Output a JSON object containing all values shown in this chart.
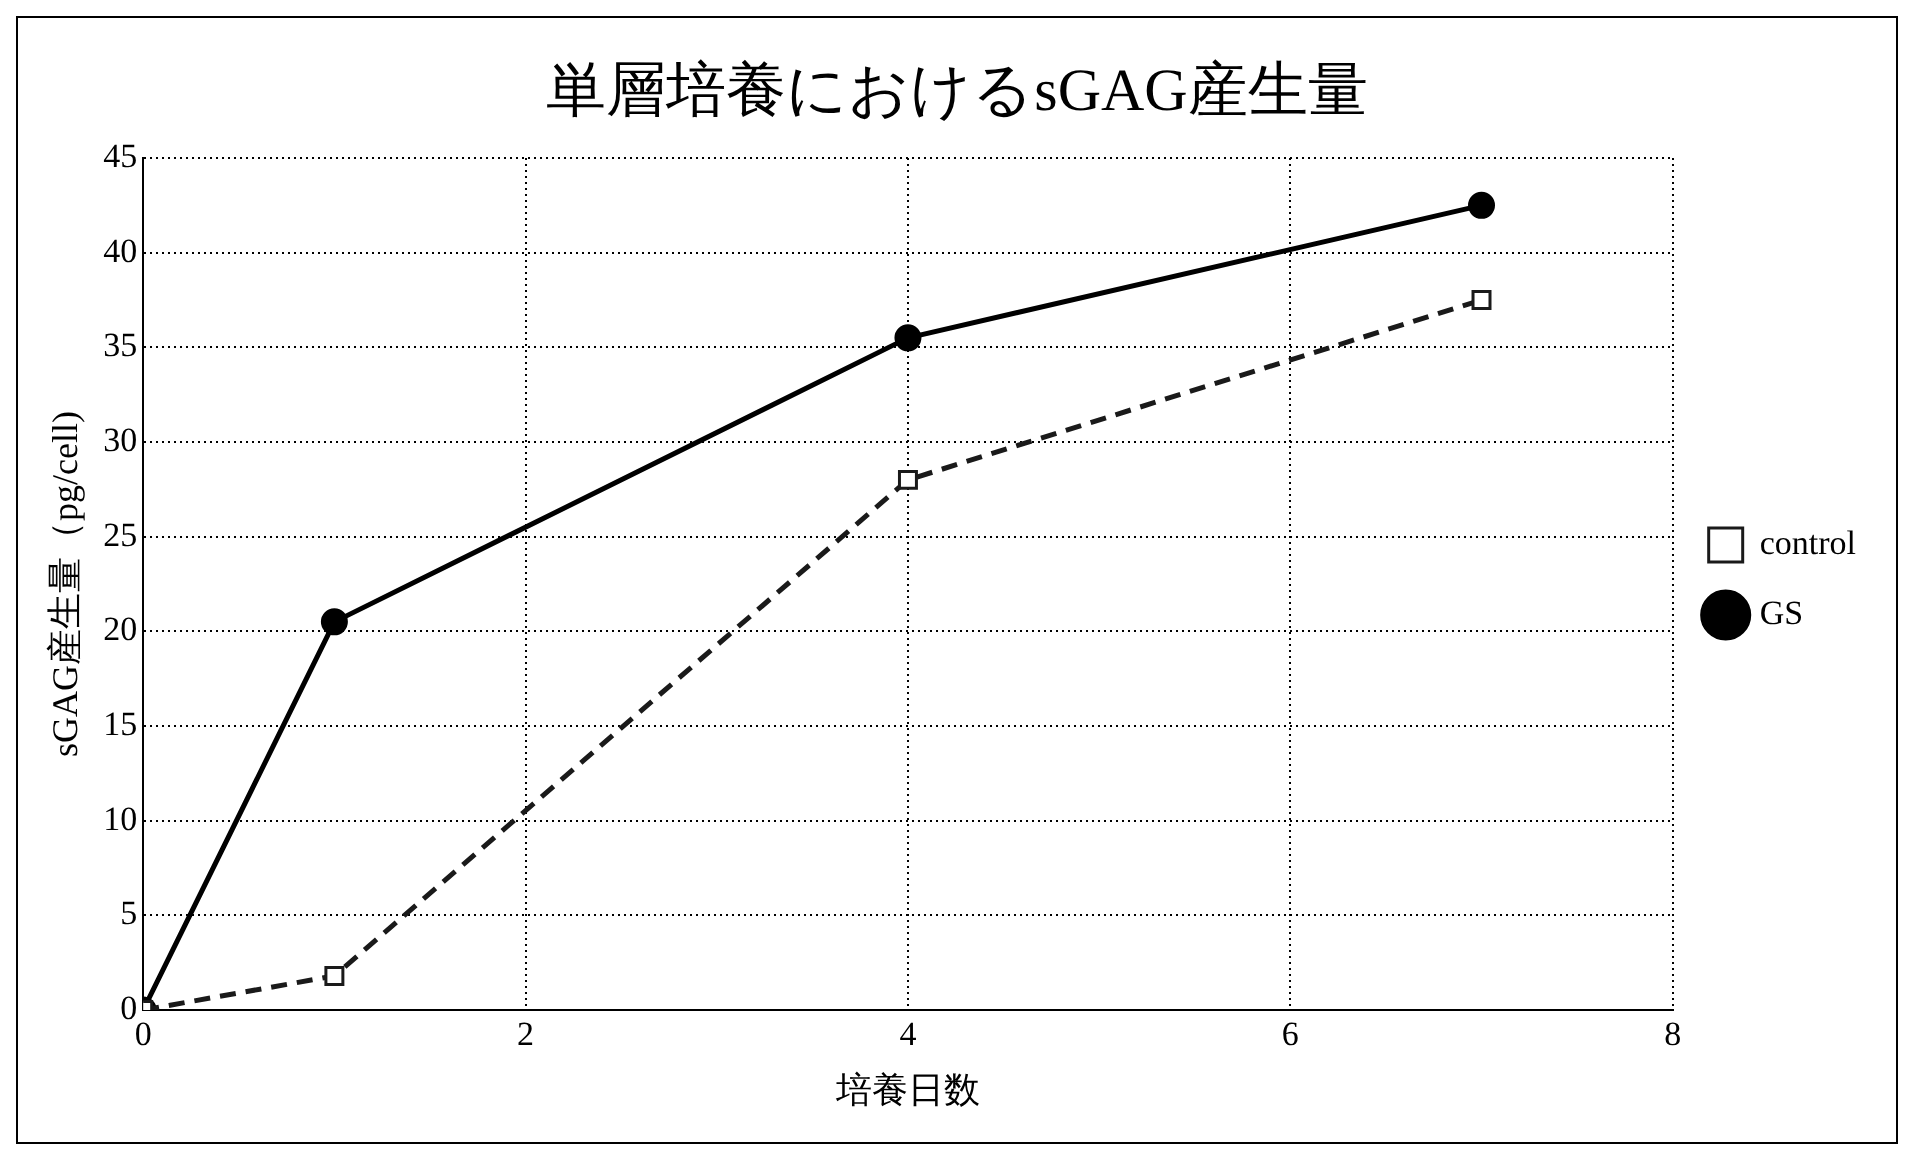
{
  "chart_data": {
    "type": "line",
    "title": "単層培養におけるsGAG産生量",
    "xlabel": "培養日数",
    "ylabel": "sGAG産生量（pg/cell)",
    "xlim": [
      0,
      8
    ],
    "xticks": [
      0,
      2,
      4,
      6,
      8
    ],
    "ylim": [
      0,
      45
    ],
    "yticks": [
      0,
      5,
      10,
      15,
      20,
      25,
      30,
      35,
      40,
      45
    ],
    "grid": true,
    "legend": "right",
    "series": [
      {
        "name": "control",
        "color": "#1a1a1a",
        "x": [
          0,
          1,
          4,
          7
        ],
        "values": [
          0,
          1.8,
          28,
          37.5
        ],
        "marker": "square",
        "line_style": "dashed"
      },
      {
        "name": "GS",
        "color": "#000000",
        "x": [
          0,
          1,
          4,
          7
        ],
        "values": [
          0,
          20.5,
          35.5,
          42.5
        ],
        "marker": "circle",
        "line_style": "solid"
      }
    ]
  }
}
